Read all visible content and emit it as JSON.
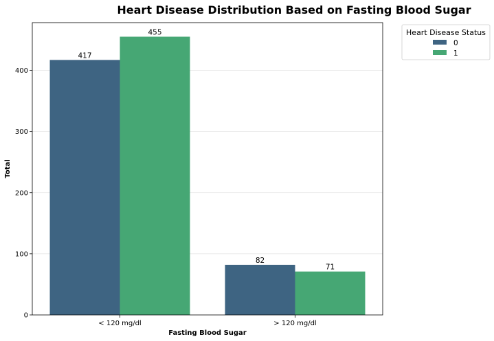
{
  "chart_data": {
    "type": "bar",
    "title": "Heart Disease Distribution Based on Fasting Blood Sugar",
    "xlabel": "Fasting Blood Sugar",
    "ylabel": "Total",
    "categories": [
      "< 120 mg/dl",
      "> 120 mg/dl"
    ],
    "series": [
      {
        "name": "0",
        "values": [
          417,
          82
        ],
        "color": "#3e6482"
      },
      {
        "name": "1",
        "values": [
          455,
          71
        ],
        "color": "#46a774"
      }
    ],
    "ylim": [
      0,
      478
    ],
    "yticks": [
      0,
      100,
      200,
      300,
      400
    ],
    "grid": "horizontal",
    "legend": {
      "title": "Heart Disease Status",
      "placement": "outside-top-right"
    }
  }
}
